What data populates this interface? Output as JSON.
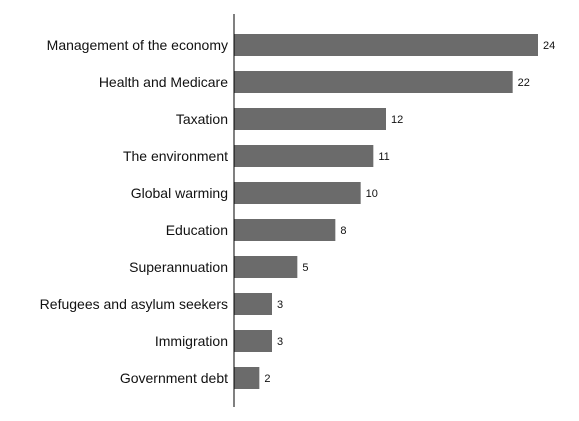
{
  "chart_data": {
    "type": "bar",
    "orientation": "horizontal",
    "categories": [
      "Management of the economy",
      "Health and Medicare",
      "Taxation",
      "The environment",
      "Global warming",
      "Education",
      "Superannuation",
      "Refugees and asylum seekers",
      "Immigration",
      "Government debt"
    ],
    "values": [
      24,
      22,
      12,
      11,
      10,
      8,
      5,
      3,
      3,
      2
    ],
    "data_labels": [
      "24",
      "22",
      "12",
      "11",
      "10",
      "8",
      "5",
      "3",
      "3",
      "2"
    ],
    "xlim": [
      0,
      24
    ],
    "grid": false,
    "legend": "none",
    "colors": {
      "bar": "#6b6b6b",
      "axis": "#000000",
      "text": "#111111"
    }
  }
}
